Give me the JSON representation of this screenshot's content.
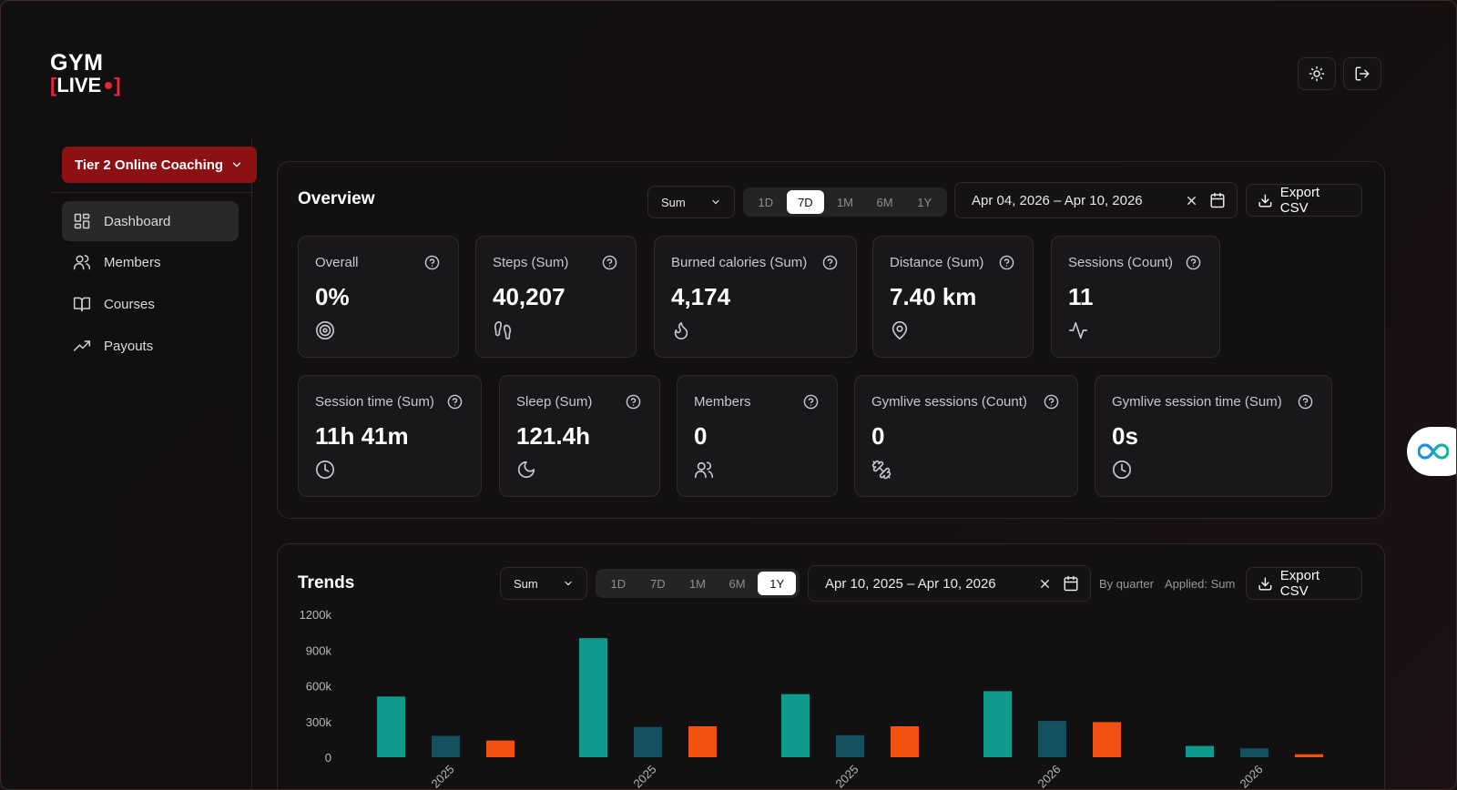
{
  "brand": {
    "line1": "GYM",
    "line2_open": "[",
    "line2_text": "LIVE",
    "line2_close": "]",
    "accent": "#e3263b"
  },
  "top_actions": {
    "theme_icon": "sun-icon",
    "logout_icon": "logout-icon"
  },
  "sidebar": {
    "program": "Tier 2 Online Coaching",
    "items": [
      {
        "label": "Dashboard",
        "icon": "dashboard-icon",
        "active": true
      },
      {
        "label": "Members",
        "icon": "users-icon",
        "active": false
      },
      {
        "label": "Courses",
        "icon": "book-icon",
        "active": false
      },
      {
        "label": "Payouts",
        "icon": "trend-up-icon",
        "active": false
      }
    ]
  },
  "overview": {
    "title": "Overview",
    "aggregate": "Sum",
    "ranges": [
      "1D",
      "7D",
      "1M",
      "6M",
      "1Y"
    ],
    "selected_range": "7D",
    "date_range": "Apr 04, 2026 – Apr 10, 2026",
    "export_label": "Export CSV",
    "cards": [
      {
        "label": "Overall",
        "value": "0%",
        "icon": "target-icon"
      },
      {
        "label": "Steps (Sum)",
        "value": "40,207",
        "icon": "footprints-icon"
      },
      {
        "label": "Burned calories (Sum)",
        "value": "4,174",
        "icon": "flame-icon"
      },
      {
        "label": "Distance (Sum)",
        "value": "7.40 km",
        "icon": "map-pin-icon"
      },
      {
        "label": "Sessions (Count)",
        "value": "11",
        "icon": "activity-icon"
      },
      {
        "label": "Session time (Sum)",
        "value": "11h 41m",
        "icon": "clock-icon"
      },
      {
        "label": "Sleep (Sum)",
        "value": "121.4h",
        "icon": "moon-icon"
      },
      {
        "label": "Members",
        "value": "0",
        "icon": "users-icon"
      },
      {
        "label": "Gymlive sessions (Count)",
        "value": "0",
        "icon": "dumbbell-icon"
      },
      {
        "label": "Gymlive session time (Sum)",
        "value": "0s",
        "icon": "clock-icon"
      }
    ]
  },
  "trends": {
    "title": "Trends",
    "aggregate": "Sum",
    "ranges": [
      "1D",
      "7D",
      "1M",
      "6M",
      "1Y"
    ],
    "selected_range": "1Y",
    "date_range": "Apr 10, 2025 – Apr 10, 2026",
    "grouping_note": "By quarter",
    "applied_note": "Applied: Sum",
    "export_label": "Export CSV"
  },
  "chart_data": {
    "type": "bar",
    "categories": [
      "2025",
      "2025",
      "2025",
      "2026",
      "2026"
    ],
    "series": [
      {
        "values": [
          510000,
          1000000,
          530000,
          555000,
          95000
        ],
        "color": "#0e9a8c"
      },
      {
        "values": [
          180000,
          255000,
          185000,
          305000,
          75000
        ],
        "color": "#14505f"
      },
      {
        "values": [
          140000,
          260000,
          260000,
          295000,
          25000
        ],
        "color": "#f3510f"
      }
    ],
    "ylim": [
      0,
      1200000
    ],
    "yticks": [
      "0",
      "300k",
      "600k",
      "900k",
      "1200k"
    ],
    "grid": false,
    "legend": "none"
  },
  "assistant_tab": {
    "icon": "infinity-icon"
  }
}
